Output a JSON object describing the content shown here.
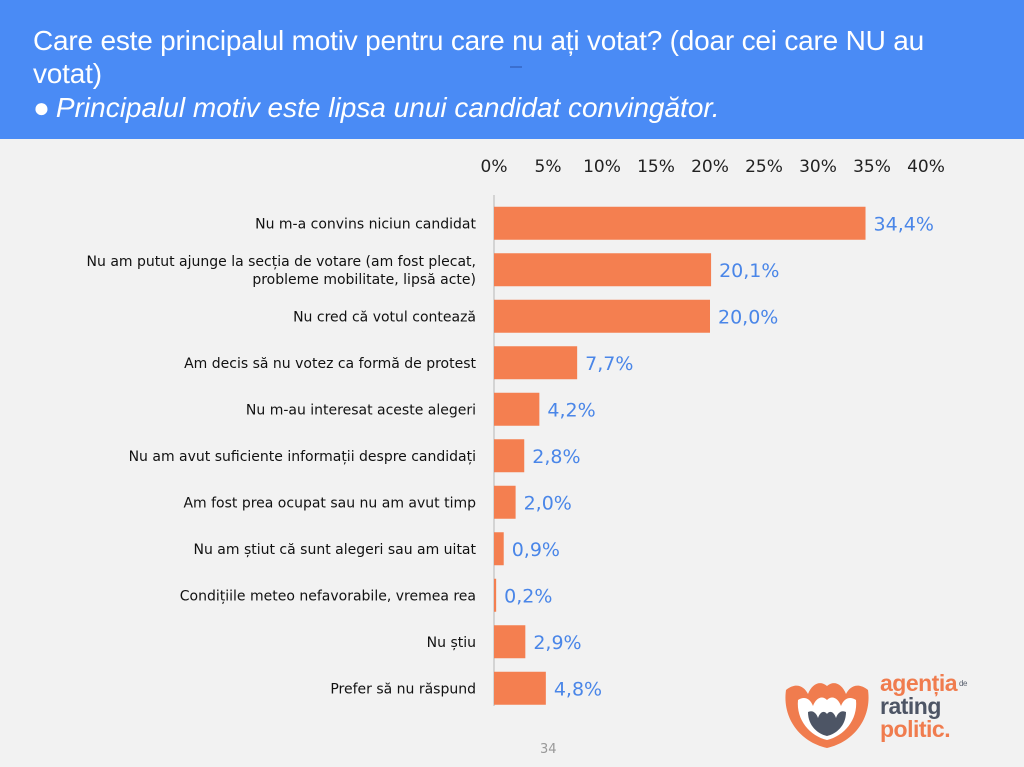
{
  "header": {
    "question": "Care este principalul motiv pentru care nu ați votat? (doar cei care NU au votat)",
    "bullet": "●",
    "finding": "Principalul motiv este lipsa unui candidat convingător."
  },
  "colors": {
    "header_bg": "#4a8bf5",
    "bar": "#f47f50",
    "value_label": "#4a86e8",
    "page_bg": "#f2f2f2"
  },
  "chart_data": {
    "type": "bar",
    "orientation": "horizontal",
    "title": "",
    "xlabel": "",
    "ylabel": "",
    "xlim": [
      0,
      40
    ],
    "ticks": [
      0,
      5,
      10,
      15,
      20,
      25,
      30,
      35,
      40
    ],
    "tick_labels": [
      "0%",
      "5%",
      "10%",
      "15%",
      "20%",
      "25%",
      "30%",
      "35%",
      "40%"
    ],
    "axis_position": "top",
    "grid": false,
    "legend": "none",
    "categories": [
      [
        "Nu m-a convins niciun candidat"
      ],
      [
        "Nu am putut ajunge la secția de votare (am fost plecat,",
        "probleme mobilitate, lipsă acte)"
      ],
      [
        "Nu cred că votul contează"
      ],
      [
        "Am decis să nu votez ca formă de protest"
      ],
      [
        "Nu m-au interesat aceste alegeri"
      ],
      [
        "Nu am avut suficiente informații despre candidați"
      ],
      [
        "Am fost prea ocupat sau nu am avut timp"
      ],
      [
        "Nu am știut că sunt alegeri sau am uitat"
      ],
      [
        "Condițiile meteo nefavorabile, vremea rea"
      ],
      [
        "Nu știu"
      ],
      [
        "Prefer să nu răspund"
      ]
    ],
    "values": [
      34.4,
      20.1,
      20.0,
      7.7,
      4.2,
      2.8,
      2.0,
      0.9,
      0.2,
      2.9,
      4.8
    ],
    "value_labels": [
      "34,4%",
      "20,1%",
      "20,0%",
      "7,7%",
      "4,2%",
      "2,8%",
      "2,0%",
      "0,9%",
      "0,2%",
      "2,9%",
      "4,8%"
    ]
  },
  "footer": {
    "page_number": "34"
  },
  "logo": {
    "line1": "agenția",
    "line1_small": "de",
    "line2": "rating",
    "line3": "politic."
  }
}
